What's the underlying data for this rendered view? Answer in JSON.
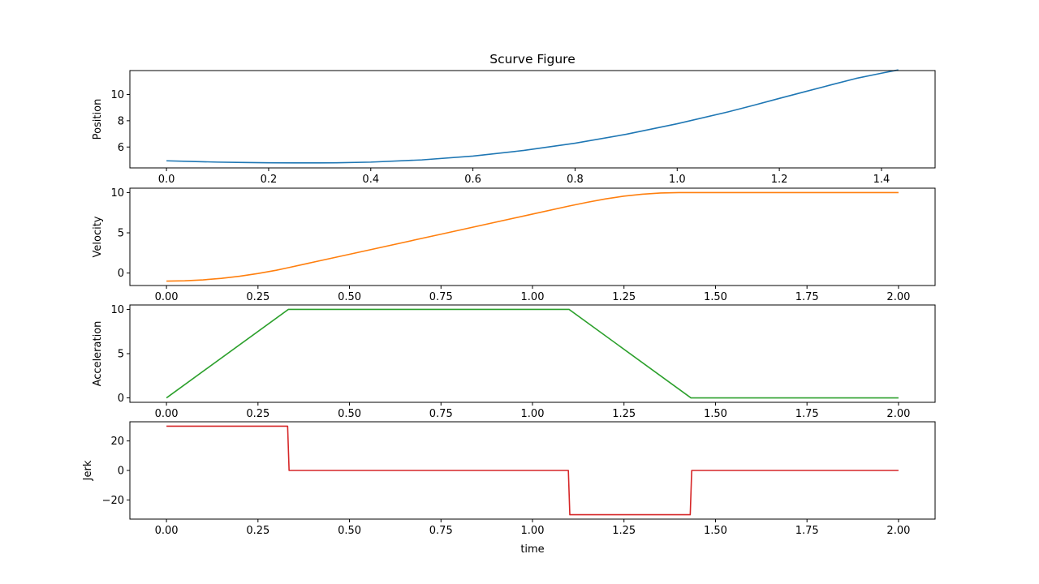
{
  "title": "Scurve Figure",
  "chart_data": [
    {
      "type": "line",
      "ylabel": "Position",
      "xlabel": "",
      "color": "#1f77b4",
      "xlim": [
        -0.0717,
        1.505
      ],
      "ylim": [
        4.41,
        11.82
      ],
      "xticks": [
        0.0,
        0.2,
        0.4,
        0.6,
        0.8,
        1.0,
        1.2,
        1.4
      ],
      "xtick_labels": [
        "0.0",
        "0.2",
        "0.4",
        "0.6",
        "0.8",
        "1.0",
        "1.2",
        "1.4"
      ],
      "yticks": [
        6,
        8,
        10
      ],
      "ytick_labels": [
        "6",
        "8",
        "10"
      ],
      "series": [
        {
          "x": [
            0.0,
            0.05,
            0.1,
            0.15,
            0.2,
            0.25,
            0.3,
            0.333,
            0.4,
            0.5,
            0.6,
            0.7,
            0.8,
            0.9,
            1.0,
            1.1,
            1.15,
            1.2,
            1.25,
            1.3,
            1.35,
            1.4,
            1.433
          ],
          "y": [
            4.95,
            4.9,
            4.85,
            4.82,
            4.8,
            4.79,
            4.79,
            4.8,
            4.85,
            5.02,
            5.31,
            5.74,
            6.29,
            6.97,
            7.77,
            8.68,
            9.18,
            9.7,
            10.21,
            10.72,
            11.22,
            11.62,
            11.87
          ]
        }
      ]
    },
    {
      "type": "line",
      "ylabel": "Velocity",
      "xlabel": "",
      "color": "#ff7f0e",
      "xlim": [
        -0.1,
        2.1
      ],
      "ylim": [
        -1.55,
        10.55
      ],
      "xticks": [
        0.0,
        0.25,
        0.5,
        0.75,
        1.0,
        1.25,
        1.5,
        1.75,
        2.0
      ],
      "xtick_labels": [
        "0.00",
        "0.25",
        "0.50",
        "0.75",
        "1.00",
        "1.25",
        "1.50",
        "1.75",
        "2.00"
      ],
      "yticks": [
        0,
        5,
        10
      ],
      "ytick_labels": [
        "0",
        "5",
        "10"
      ],
      "series": [
        {
          "x": [
            0.0,
            0.05,
            0.1,
            0.15,
            0.2,
            0.25,
            0.3,
            0.333,
            0.5,
            0.75,
            1.0,
            1.1,
            1.15,
            1.2,
            1.25,
            1.3,
            1.35,
            1.4,
            1.433,
            2.0
          ],
          "y": [
            -1.0,
            -0.96,
            -0.85,
            -0.66,
            -0.4,
            -0.06,
            0.35,
            0.67,
            2.33,
            4.83,
            7.33,
            8.33,
            8.8,
            9.22,
            9.56,
            9.8,
            9.95,
            10.0,
            10.0,
            10.0
          ]
        }
      ]
    },
    {
      "type": "line",
      "ylabel": "Acceleration",
      "xlabel": "",
      "color": "#2ca02c",
      "xlim": [
        -0.1,
        2.1
      ],
      "ylim": [
        -0.5,
        10.5
      ],
      "xticks": [
        0.0,
        0.25,
        0.5,
        0.75,
        1.0,
        1.25,
        1.5,
        1.75,
        2.0
      ],
      "xtick_labels": [
        "0.00",
        "0.25",
        "0.50",
        "0.75",
        "1.00",
        "1.25",
        "1.50",
        "1.75",
        "2.00"
      ],
      "yticks": [
        0,
        5,
        10
      ],
      "ytick_labels": [
        "0",
        "5",
        "10"
      ],
      "series": [
        {
          "x": [
            0.0,
            0.333,
            1.1,
            1.433,
            2.0
          ],
          "y": [
            0,
            10,
            10,
            0,
            0
          ]
        }
      ]
    },
    {
      "type": "line",
      "ylabel": "Jerk",
      "xlabel": "time",
      "color": "#d62728",
      "xlim": [
        -0.1,
        2.1
      ],
      "ylim": [
        -33,
        33
      ],
      "xticks": [
        0.0,
        0.25,
        0.5,
        0.75,
        1.0,
        1.25,
        1.5,
        1.75,
        2.0
      ],
      "xtick_labels": [
        "0.00",
        "0.25",
        "0.50",
        "0.75",
        "1.00",
        "1.25",
        "1.50",
        "1.75",
        "2.00"
      ],
      "yticks": [
        -20,
        0,
        20
      ],
      "ytick_labels": [
        "−20",
        "0",
        "20"
      ],
      "series": [
        {
          "x": [
            0.0,
            0.331,
            0.335,
            1.098,
            1.102,
            1.431,
            1.435,
            2.0
          ],
          "y": [
            30,
            30,
            0,
            0,
            -30,
            -30,
            0,
            0
          ]
        }
      ]
    }
  ]
}
